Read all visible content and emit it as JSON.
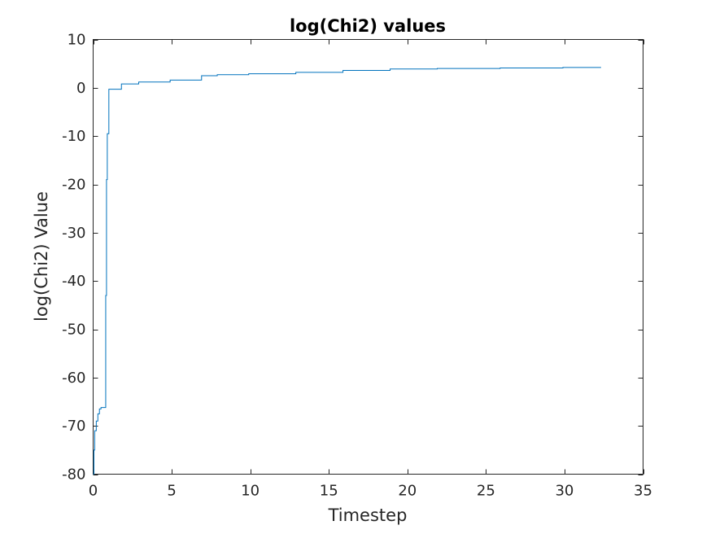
{
  "chart_data": {
    "type": "line",
    "title": "log(Chi2) values",
    "xlabel": "Timestep",
    "ylabel": "log(Chi2) Value",
    "xlim": [
      0,
      35
    ],
    "ylim": [
      -80,
      10
    ],
    "xticks": [
      "0",
      "5",
      "10",
      "15",
      "20",
      "25",
      "30",
      "35"
    ],
    "yticks": [
      "-80",
      "-70",
      "-60",
      "-50",
      "-40",
      "-30",
      "-20",
      "-10",
      "0",
      "10"
    ],
    "grid": false,
    "step": true,
    "color": "#0072BD",
    "series": [
      {
        "x": [
          0.0,
          0.05,
          0.1,
          0.2,
          0.3,
          0.4,
          0.5,
          0.8,
          0.85,
          0.9,
          1.0,
          1.8,
          2.9,
          4.9,
          6.9,
          7.9,
          9.9,
          12.9,
          15.9,
          18.9,
          21.9,
          25.9,
          29.9,
          32.3
        ],
        "y": [
          -80.0,
          -75.0,
          -71.0,
          -69.0,
          -67.5,
          -66.5,
          -66.2,
          -43.0,
          -19.0,
          -9.5,
          -0.3,
          0.8,
          1.2,
          1.6,
          2.5,
          2.7,
          2.9,
          3.2,
          3.6,
          3.9,
          4.0,
          4.1,
          4.2,
          4.3
        ]
      }
    ]
  }
}
